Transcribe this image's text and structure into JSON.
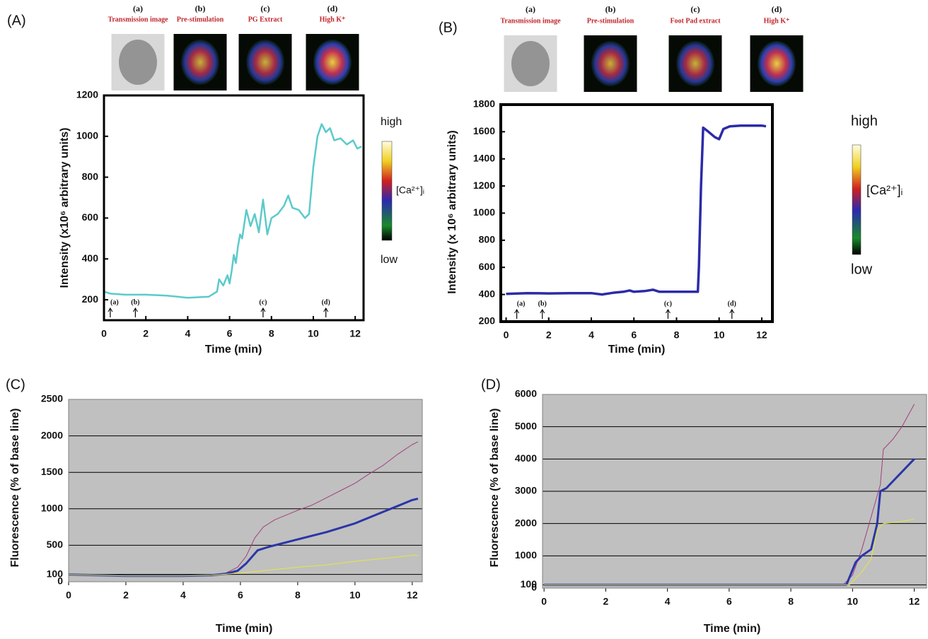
{
  "chart_data": [
    {
      "type": "line",
      "panel": "(A)",
      "xlabel": "Time (min)",
      "ylabel": "Intensity (x10⁶ arbitrary units)",
      "xlim": [
        0,
        12.4
      ],
      "ylim": [
        100,
        1200
      ],
      "xticks": [
        0,
        2,
        4,
        6,
        8,
        10,
        12
      ],
      "yticks": [
        200,
        400,
        600,
        800,
        1000,
        1200
      ],
      "color": "#5ccaca",
      "x": [
        0,
        0.3,
        1,
        2,
        3,
        4,
        5,
        5.4,
        5.5,
        5.7,
        5.9,
        6.0,
        6.1,
        6.2,
        6.3,
        6.4,
        6.5,
        6.6,
        6.8,
        7.0,
        7.2,
        7.4,
        7.6,
        7.8,
        8.0,
        8.3,
        8.6,
        8.8,
        9.0,
        9.3,
        9.6,
        9.8,
        10.0,
        10.2,
        10.4,
        10.6,
        10.8,
        11.0,
        11.3,
        11.6,
        11.9,
        12.1,
        12.3
      ],
      "values": [
        240,
        230,
        225,
        225,
        220,
        210,
        215,
        240,
        300,
        270,
        320,
        280,
        340,
        420,
        380,
        460,
        520,
        500,
        640,
        560,
        620,
        530,
        690,
        520,
        600,
        620,
        660,
        710,
        650,
        640,
        600,
        620,
        850,
        1000,
        1060,
        1020,
        1040,
        980,
        990,
        960,
        980,
        940,
        950
      ],
      "annotations": [
        {
          "text": "(a)",
          "x": 0.3
        },
        {
          "text": "(b)",
          "x": 1.5
        },
        {
          "text": "(c)",
          "x": 7.6
        },
        {
          "text": "(d)",
          "x": 10.6
        }
      ],
      "images": [
        {
          "letter": "(a)",
          "caption": "Transmission image"
        },
        {
          "letter": "(b)",
          "caption": "Pre-stimulation"
        },
        {
          "letter": "(c)",
          "caption": "PG Extract"
        },
        {
          "letter": "(d)",
          "caption": "High K⁺"
        }
      ],
      "colorbar": {
        "high": "high",
        "label": "[Ca²⁺]ᵢ",
        "low": "low"
      }
    },
    {
      "type": "line",
      "panel": "(B)",
      "xlabel": "Time (min)",
      "ylabel": "Intensity (x 10⁶ arbitrary units)",
      "xlim": [
        -0.25,
        12.5
      ],
      "ylim": [
        200,
        1800
      ],
      "xticks": [
        0,
        2,
        4,
        6,
        8,
        10,
        12
      ],
      "yticks": [
        200,
        400,
        600,
        800,
        1000,
        1200,
        1400,
        1600,
        1800
      ],
      "color": "#2b2ba8",
      "x": [
        0,
        1,
        2,
        3,
        4,
        4.5,
        5,
        5.5,
        5.8,
        6,
        6.5,
        6.9,
        7.2,
        8,
        9,
        9.05,
        9.15,
        9.25,
        9.5,
        9.8,
        10,
        10.2,
        10.5,
        11,
        12,
        12.2
      ],
      "values": [
        405,
        410,
        408,
        410,
        410,
        400,
        412,
        420,
        430,
        420,
        425,
        435,
        420,
        420,
        420,
        600,
        1200,
        1630,
        1600,
        1560,
        1545,
        1620,
        1640,
        1645,
        1645,
        1640
      ],
      "annotations": [
        {
          "text": "(a)",
          "x": 0.5
        },
        {
          "text": "(b)",
          "x": 1.7
        },
        {
          "text": "(c)",
          "x": 7.6
        },
        {
          "text": "(d)",
          "x": 10.6
        }
      ],
      "images": [
        {
          "letter": "(a)",
          "caption": "Transmission image"
        },
        {
          "letter": "(b)",
          "caption": "Pre-stimulation"
        },
        {
          "letter": "(c)",
          "caption": "Foot Pad extract"
        },
        {
          "letter": "(d)",
          "caption": "High K⁺"
        }
      ],
      "colorbar": {
        "high": "high",
        "label": "[Ca²⁺]ᵢ",
        "low": "low"
      }
    },
    {
      "type": "line",
      "panel": "(C)",
      "xlabel": "Time (min)",
      "ylabel": "Fluorescence (% of base line)",
      "xlim": [
        0,
        12.35
      ],
      "ylim": [
        0,
        2500
      ],
      "xticks": [
        0,
        2,
        4,
        6,
        8,
        10,
        12
      ],
      "yticks": [
        0,
        100,
        500,
        1000,
        1500,
        2000,
        2500
      ],
      "grid": true,
      "series": [
        {
          "color": "#a0407a",
          "x": [
            0,
            2,
            4,
            5,
            5.5,
            5.9,
            6.2,
            6.5,
            6.8,
            7.2,
            8,
            8.5,
            9,
            9.5,
            10,
            10.5,
            11,
            11.5,
            12,
            12.2
          ],
          "values": [
            100,
            80,
            80,
            90,
            120,
            200,
            350,
            600,
            750,
            850,
            980,
            1050,
            1150,
            1250,
            1350,
            1480,
            1600,
            1750,
            1880,
            1920
          ]
        },
        {
          "color": "#2a36a8",
          "x": [
            0,
            2,
            4,
            5,
            5.5,
            5.9,
            6.2,
            6.6,
            7,
            8,
            9,
            10,
            11,
            11.5,
            12,
            12.2
          ],
          "values": [
            100,
            80,
            80,
            90,
            110,
            150,
            250,
            430,
            480,
            580,
            680,
            800,
            960,
            1040,
            1120,
            1140
          ]
        },
        {
          "color": "#e6e640",
          "x": [
            0,
            2,
            4,
            5,
            6,
            7,
            8,
            9,
            10,
            11,
            12,
            12.2
          ],
          "values": [
            100,
            80,
            80,
            90,
            120,
            160,
            200,
            230,
            280,
            320,
            360,
            360
          ]
        }
      ]
    },
    {
      "type": "line",
      "panel": "(D)",
      "xlabel": "Time (min)",
      "ylabel": "Fluorescence (% of base line)",
      "xlim": [
        -0.05,
        12.4
      ],
      "ylim": [
        0,
        6000
      ],
      "xticks": [
        0,
        2,
        4,
        6,
        8,
        10,
        12
      ],
      "yticks": [
        0,
        100,
        1000,
        2000,
        3000,
        4000,
        5000,
        6000
      ],
      "grid": true,
      "series": [
        {
          "color": "#a0407a",
          "x": [
            0,
            9.7,
            10,
            10.3,
            10.6,
            10.9,
            11,
            11.3,
            11.6,
            12
          ],
          "values": [
            100,
            100,
            400,
            1200,
            2200,
            3200,
            4300,
            4600,
            5000,
            5700
          ]
        },
        {
          "color": "#2a36a8",
          "x": [
            0,
            9.8,
            10.1,
            10.3,
            10.6,
            10.8,
            10.9,
            11.1,
            11.5,
            12
          ],
          "values": [
            100,
            100,
            800,
            1000,
            1200,
            2000,
            3000,
            3100,
            3500,
            4000
          ]
        },
        {
          "color": "#e6e640",
          "x": [
            0,
            9.9,
            10.3,
            10.6,
            10.8,
            11,
            11.5,
            11.8,
            12
          ],
          "values": [
            100,
            100,
            500,
            900,
            1800,
            2000,
            2050,
            2100,
            2150
          ]
        }
      ]
    }
  ]
}
